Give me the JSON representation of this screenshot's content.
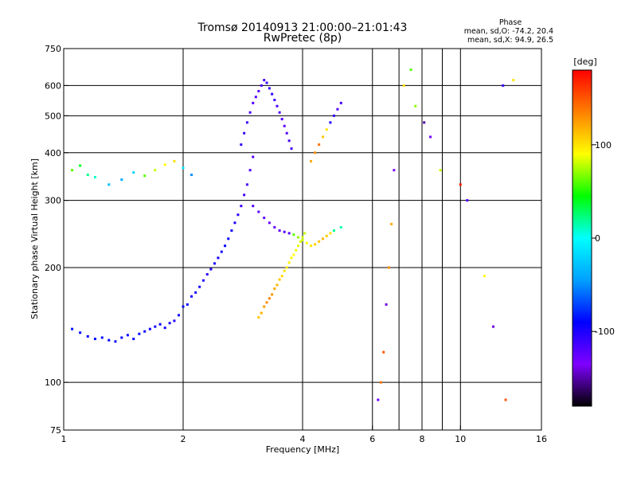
{
  "header": {
    "title": "Tromsø 20140913 21:00:00–21:01:43",
    "subtitle": "RwPretec (8p)"
  },
  "phase_info": {
    "heading": "Phase",
    "line_o": "mean, sd,O:  -74.2, 20.4",
    "line_x": "mean, sd,X:  94.9, 26.5"
  },
  "colorbar": {
    "unit": "[deg]",
    "ticks": [
      {
        "value": 100,
        "label": "100"
      },
      {
        "value": 0,
        "label": "0"
      },
      {
        "value": -100,
        "label": "-100"
      }
    ],
    "min": -180,
    "max": 180,
    "colors": [
      "#000000",
      "#7f00ff",
      "#0000ff",
      "#00a0ff",
      "#00ffff",
      "#00ff00",
      "#ffff00",
      "#ff8000",
      "#ff0000"
    ]
  },
  "chart_data": {
    "type": "scatter",
    "title": "Tromsø 20140913 21:00:00–21:01:43",
    "subtitle": "RwPretec (8p)",
    "xlabel": "Frequency [MHz]",
    "ylabel": "Stationary phase Virtual Height [km]",
    "x_scale": "log",
    "y_scale": "log",
    "xlim": [
      1,
      16
    ],
    "ylim": [
      75,
      750
    ],
    "xticks": [
      1,
      2,
      4,
      6,
      8,
      10,
      16
    ],
    "xtick_labels": [
      "1",
      "2",
      "4",
      "6",
      "8",
      "10",
      "16"
    ],
    "xgrid_lines": [
      2,
      4,
      6,
      7,
      8,
      9,
      10
    ],
    "yticks": [
      75,
      100,
      200,
      300,
      400,
      500,
      600,
      750
    ],
    "ytick_labels": [
      "75",
      "100",
      "200",
      "300",
      "400",
      "500",
      "600",
      "750"
    ],
    "ygrid_lines": [
      100,
      200,
      300,
      400,
      500,
      600
    ],
    "grid": true,
    "color_variable": "phase [deg]",
    "series": [
      {
        "x": [
          1.05,
          1.1,
          1.15,
          1.2,
          1.25,
          1.3,
          1.35,
          1.4,
          1.45,
          1.5,
          1.55,
          1.6,
          1.65,
          1.7,
          1.75,
          1.8,
          1.85,
          1.9,
          1.95,
          2.0
        ],
        "y": [
          138,
          135,
          132,
          130,
          131,
          129,
          128,
          131,
          133,
          130,
          134,
          136,
          138,
          140,
          142,
          139,
          143,
          145,
          150,
          158
        ],
        "phase": [
          -85,
          -88,
          -92,
          -90,
          -86,
          -89,
          -91,
          -88,
          -93,
          -90,
          -87,
          -92,
          -95,
          -97,
          -94,
          -96,
          -98,
          -100,
          -95,
          -93
        ]
      },
      {
        "x": [
          2.05,
          2.1,
          2.15,
          2.2,
          2.25,
          2.3,
          2.35,
          2.4,
          2.45,
          2.5,
          2.55,
          2.6,
          2.65,
          2.7,
          2.75,
          2.8,
          2.85,
          2.9,
          2.95,
          3.0
        ],
        "y": [
          160,
          168,
          172,
          178,
          185,
          192,
          198,
          205,
          212,
          220,
          228,
          238,
          250,
          262,
          275,
          290,
          310,
          330,
          360,
          390
        ],
        "phase": [
          -90,
          -95,
          -98,
          -100,
          -102,
          -105,
          -100,
          -98,
          -96,
          -94,
          -92,
          -90,
          -95,
          -100,
          -105,
          -110,
          -112,
          -115,
          -118,
          -120
        ]
      },
      {
        "x": [
          2.8,
          2.85,
          2.9,
          2.95,
          3.0,
          3.05,
          3.1,
          3.15,
          3.2,
          3.25,
          3.3,
          3.35,
          3.4,
          3.45,
          3.5,
          3.55,
          3.6,
          3.65,
          3.7,
          3.75
        ],
        "y": [
          420,
          450,
          480,
          510,
          540,
          560,
          580,
          600,
          620,
          610,
          590,
          570,
          550,
          530,
          510,
          490,
          470,
          450,
          430,
          410
        ],
        "phase": [
          -105,
          -110,
          -112,
          -115,
          -118,
          -120,
          -122,
          -118,
          -115,
          -112,
          -110,
          -108,
          -112,
          -115,
          -118,
          -120,
          -122,
          -118,
          -115,
          -112
        ]
      },
      {
        "x": [
          3.0,
          3.1,
          3.2,
          3.3,
          3.4,
          3.5,
          3.6,
          3.7,
          3.8,
          3.9,
          4.0,
          4.1,
          4.2,
          4.3,
          4.4,
          4.5,
          4.6,
          4.7,
          4.8,
          5.0
        ],
        "y": [
          290,
          280,
          270,
          262,
          255,
          250,
          248,
          246,
          244,
          240,
          236,
          232,
          228,
          230,
          234,
          238,
          242,
          246,
          250,
          255
        ],
        "phase": [
          -120,
          -122,
          -125,
          -128,
          -126,
          -124,
          -122,
          -120,
          60,
          70,
          80,
          90,
          100,
          105,
          110,
          115,
          108,
          100,
          20,
          15
        ]
      },
      {
        "x": [
          3.1,
          3.15,
          3.2,
          3.25,
          3.3,
          3.35,
          3.4,
          3.45,
          3.5,
          3.55,
          3.6,
          3.65,
          3.7,
          3.75,
          3.8,
          3.85,
          3.9,
          3.95,
          4.0,
          4.05
        ],
        "y": [
          148,
          152,
          158,
          162,
          166,
          170,
          176,
          180,
          186,
          190,
          196,
          200,
          206,
          212,
          216,
          222,
          228,
          234,
          240,
          246
        ],
        "phase": [
          110,
          118,
          125,
          130,
          135,
          128,
          120,
          115,
          110,
          105,
          100,
          98,
          95,
          92,
          90,
          88,
          86,
          84,
          82,
          80
        ]
      },
      {
        "x": [
          1.05,
          1.1,
          1.15,
          1.2,
          1.3,
          1.4,
          1.5,
          1.6,
          1.7,
          1.8,
          1.9,
          2.0,
          2.1
        ],
        "y": [
          360,
          370,
          350,
          345,
          330,
          340,
          355,
          348,
          360,
          372,
          380,
          365,
          350
        ],
        "phase": [
          60,
          40,
          20,
          10,
          -30,
          -40,
          -20,
          60,
          80,
          90,
          100,
          -10,
          -50
        ]
      },
      {
        "x": [
          4.2,
          4.3,
          4.4,
          4.5,
          4.6,
          4.7,
          4.8,
          4.9,
          5.0
        ],
        "y": [
          380,
          400,
          420,
          440,
          460,
          480,
          500,
          520,
          540
        ],
        "phase": [
          120,
          130,
          140,
          110,
          100,
          -100,
          -110,
          -120,
          -115
        ]
      },
      {
        "x": [
          6.2,
          6.3,
          6.4,
          6.5,
          6.6,
          6.7,
          6.8,
          7.2,
          7.5,
          7.7,
          8.1,
          8.4,
          8.9,
          10.0,
          10.4,
          11.5,
          12.1,
          12.8,
          13.0,
          13.6
        ],
        "y": [
          90,
          100,
          120,
          160,
          200,
          260,
          360,
          600,
          660,
          530,
          480,
          440,
          360,
          330,
          300,
          190,
          140,
          600,
          90,
          620
        ],
        "phase": [
          -130,
          140,
          150,
          -140,
          130,
          120,
          -135,
          100,
          60,
          70,
          -150,
          -130,
          80,
          170,
          -120,
          90,
          -140,
          -110,
          150,
          100
        ]
      }
    ]
  }
}
